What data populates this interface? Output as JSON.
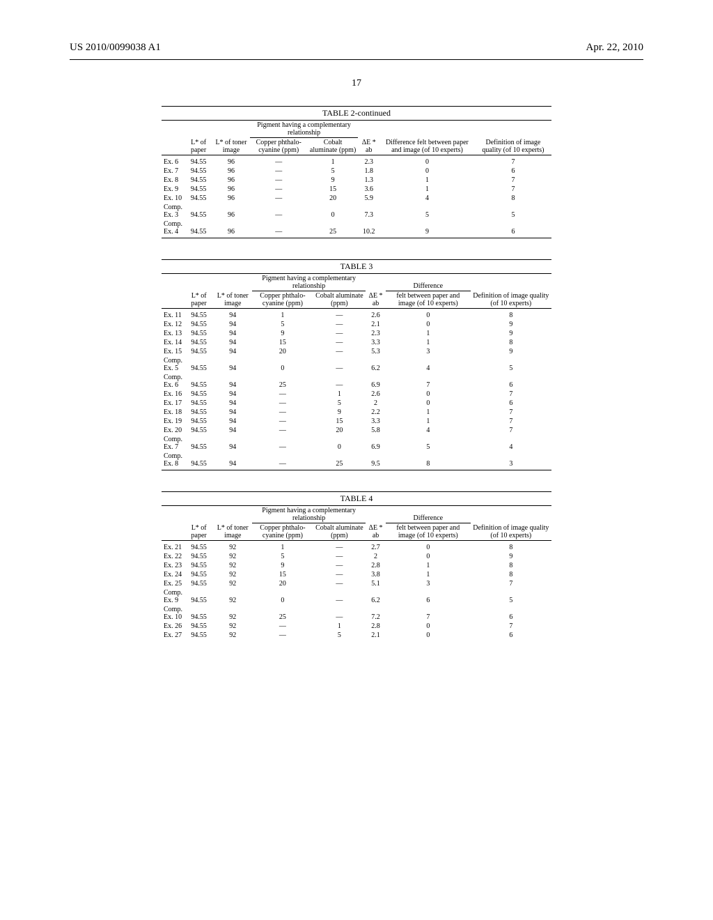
{
  "header": {
    "pub_number": "US 2010/0099038 A1",
    "date": "Apr. 22, 2010",
    "page_number": "17"
  },
  "tables": [
    {
      "title": "TABLE 2-continued",
      "columns": {
        "row_label": "",
        "l_paper": "L* of paper",
        "l_toner": "L* of toner image",
        "pigment_group": "Pigment having a complementary relationship",
        "copper": "Copper phthalo-cyanine (ppm)",
        "cobalt": "Cobalt aluminate (ppm)",
        "de_ab": "ΔE * ab",
        "diff": "Difference felt between paper and image (of 10 experts)",
        "def": "Definition of image quality (of 10 experts)"
      },
      "rows": [
        {
          "label": "Ex. 6",
          "l_paper": "94.55",
          "l_toner": "96",
          "copper": "—",
          "cobalt": "1",
          "de": "2.3",
          "diff": "0",
          "def": "7"
        },
        {
          "label": "Ex. 7",
          "l_paper": "94.55",
          "l_toner": "96",
          "copper": "—",
          "cobalt": "5",
          "de": "1.8",
          "diff": "0",
          "def": "6"
        },
        {
          "label": "Ex. 8",
          "l_paper": "94.55",
          "l_toner": "96",
          "copper": "—",
          "cobalt": "9",
          "de": "1.3",
          "diff": "1",
          "def": "7"
        },
        {
          "label": "Ex. 9",
          "l_paper": "94.55",
          "l_toner": "96",
          "copper": "—",
          "cobalt": "15",
          "de": "3.6",
          "diff": "1",
          "def": "7"
        },
        {
          "label": "Ex. 10",
          "l_paper": "94.55",
          "l_toner": "96",
          "copper": "—",
          "cobalt": "20",
          "de": "5.9",
          "diff": "4",
          "def": "8"
        },
        {
          "label": "Comp. Ex. 3",
          "l_paper": "94.55",
          "l_toner": "96",
          "copper": "—",
          "cobalt": "0",
          "de": "7.3",
          "diff": "5",
          "def": "5"
        },
        {
          "label": "Comp. Ex. 4",
          "l_paper": "94.55",
          "l_toner": "96",
          "copper": "—",
          "cobalt": "25",
          "de": "10.2",
          "diff": "9",
          "def": "6"
        }
      ]
    },
    {
      "title": "TABLE 3",
      "columns": {
        "row_label": "",
        "l_paper": "L* of paper",
        "l_toner": "L* of toner image",
        "pigment_group": "Pigment having a complementary relationship",
        "copper": "Copper phthalo-cyanine (ppm)",
        "cobalt": "Cobalt aluminate (ppm)",
        "de_ab": "ΔE * ab",
        "diff_group": "Difference",
        "diff": "felt between paper and image (of 10 experts)",
        "def": "Definition of image quality (of 10 experts)"
      },
      "rows": [
        {
          "label": "Ex. 11",
          "l_paper": "94.55",
          "l_toner": "94",
          "copper": "1",
          "cobalt": "—",
          "de": "2.6",
          "diff": "0",
          "def": "8"
        },
        {
          "label": "Ex. 12",
          "l_paper": "94.55",
          "l_toner": "94",
          "copper": "5",
          "cobalt": "—",
          "de": "2.1",
          "diff": "0",
          "def": "9"
        },
        {
          "label": "Ex. 13",
          "l_paper": "94.55",
          "l_toner": "94",
          "copper": "9",
          "cobalt": "—",
          "de": "2.3",
          "diff": "1",
          "def": "9"
        },
        {
          "label": "Ex. 14",
          "l_paper": "94.55",
          "l_toner": "94",
          "copper": "15",
          "cobalt": "—",
          "de": "3.3",
          "diff": "1",
          "def": "8"
        },
        {
          "label": "Ex. 15",
          "l_paper": "94.55",
          "l_toner": "94",
          "copper": "20",
          "cobalt": "—",
          "de": "5.3",
          "diff": "3",
          "def": "9"
        },
        {
          "label": "Comp. Ex. 5",
          "l_paper": "94.55",
          "l_toner": "94",
          "copper": "0",
          "cobalt": "—",
          "de": "6.2",
          "diff": "4",
          "def": "5"
        },
        {
          "label": "Comp. Ex. 6",
          "l_paper": "94.55",
          "l_toner": "94",
          "copper": "25",
          "cobalt": "—",
          "de": "6.9",
          "diff": "7",
          "def": "6"
        },
        {
          "label": "Ex. 16",
          "l_paper": "94.55",
          "l_toner": "94",
          "copper": "—",
          "cobalt": "1",
          "de": "2.6",
          "diff": "0",
          "def": "7"
        },
        {
          "label": "Ex. 17",
          "l_paper": "94.55",
          "l_toner": "94",
          "copper": "—",
          "cobalt": "5",
          "de": "2",
          "diff": "0",
          "def": "6"
        },
        {
          "label": "Ex. 18",
          "l_paper": "94.55",
          "l_toner": "94",
          "copper": "—",
          "cobalt": "9",
          "de": "2.2",
          "diff": "1",
          "def": "7"
        },
        {
          "label": "Ex. 19",
          "l_paper": "94.55",
          "l_toner": "94",
          "copper": "—",
          "cobalt": "15",
          "de": "3.3",
          "diff": "1",
          "def": "7"
        },
        {
          "label": "Ex. 20",
          "l_paper": "94.55",
          "l_toner": "94",
          "copper": "—",
          "cobalt": "20",
          "de": "5.8",
          "diff": "4",
          "def": "7"
        },
        {
          "label": "Comp. Ex. 7",
          "l_paper": "94.55",
          "l_toner": "94",
          "copper": "—",
          "cobalt": "0",
          "de": "6.9",
          "diff": "5",
          "def": "4"
        },
        {
          "label": "Comp. Ex. 8",
          "l_paper": "94.55",
          "l_toner": "94",
          "copper": "—",
          "cobalt": "25",
          "de": "9.5",
          "diff": "8",
          "def": "3"
        }
      ]
    },
    {
      "title": "TABLE 4",
      "columns": {
        "row_label": "",
        "l_paper": "L* of paper",
        "l_toner": "L* of toner image",
        "pigment_group": "Pigment having a complementary relationship",
        "copper": "Copper phthalo-cyanine (ppm)",
        "cobalt": "Cobalt aluminate (ppm)",
        "de_ab": "ΔE * ab",
        "diff_group": "Difference",
        "diff": "felt between paper and image (of 10 experts)",
        "def": "Definition of image quality (of 10 experts)"
      },
      "rows": [
        {
          "label": "Ex. 21",
          "l_paper": "94.55",
          "l_toner": "92",
          "copper": "1",
          "cobalt": "—",
          "de": "2.7",
          "diff": "0",
          "def": "8"
        },
        {
          "label": "Ex. 22",
          "l_paper": "94.55",
          "l_toner": "92",
          "copper": "5",
          "cobalt": "—",
          "de": "2",
          "diff": "0",
          "def": "9"
        },
        {
          "label": "Ex. 23",
          "l_paper": "94.55",
          "l_toner": "92",
          "copper": "9",
          "cobalt": "—",
          "de": "2.8",
          "diff": "1",
          "def": "8"
        },
        {
          "label": "Ex. 24",
          "l_paper": "94.55",
          "l_toner": "92",
          "copper": "15",
          "cobalt": "—",
          "de": "3.8",
          "diff": "1",
          "def": "8"
        },
        {
          "label": "Ex. 25",
          "l_paper": "94.55",
          "l_toner": "92",
          "copper": "20",
          "cobalt": "—",
          "de": "5.1",
          "diff": "3",
          "def": "7"
        },
        {
          "label": "Comp. Ex. 9",
          "l_paper": "94.55",
          "l_toner": "92",
          "copper": "0",
          "cobalt": "—",
          "de": "6.2",
          "diff": "6",
          "def": "5"
        },
        {
          "label": "Comp. Ex. 10",
          "l_paper": "94.55",
          "l_toner": "92",
          "copper": "25",
          "cobalt": "—",
          "de": "7.2",
          "diff": "7",
          "def": "6"
        },
        {
          "label": "Ex. 26",
          "l_paper": "94.55",
          "l_toner": "92",
          "copper": "—",
          "cobalt": "1",
          "de": "2.8",
          "diff": "0",
          "def": "7"
        },
        {
          "label": "Ex. 27",
          "l_paper": "94.55",
          "l_toner": "92",
          "copper": "—",
          "cobalt": "5",
          "de": "2.1",
          "diff": "0",
          "def": "6"
        }
      ]
    }
  ]
}
